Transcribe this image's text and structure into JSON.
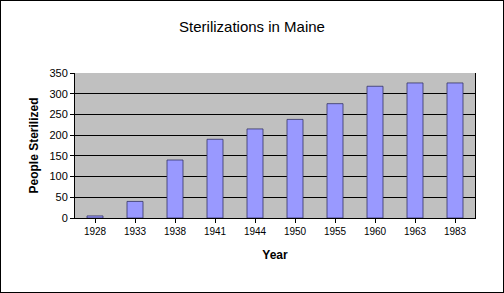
{
  "chart_data": {
    "type": "bar",
    "title": "Sterilizations in Maine",
    "x_label": "Year",
    "y_label": "People Sterilized",
    "categories": [
      "1928",
      "1933",
      "1938",
      "1941",
      "1944",
      "1950",
      "1955",
      "1960",
      "1963",
      "1983"
    ],
    "values": [
      5,
      40,
      140,
      190,
      215,
      238,
      276,
      318,
      326,
      326
    ],
    "color": "#9999ff",
    "ylim": [
      0,
      350
    ],
    "yticks": [
      0,
      50,
      100,
      150,
      200,
      250,
      300,
      350
    ],
    "grid": true
  }
}
